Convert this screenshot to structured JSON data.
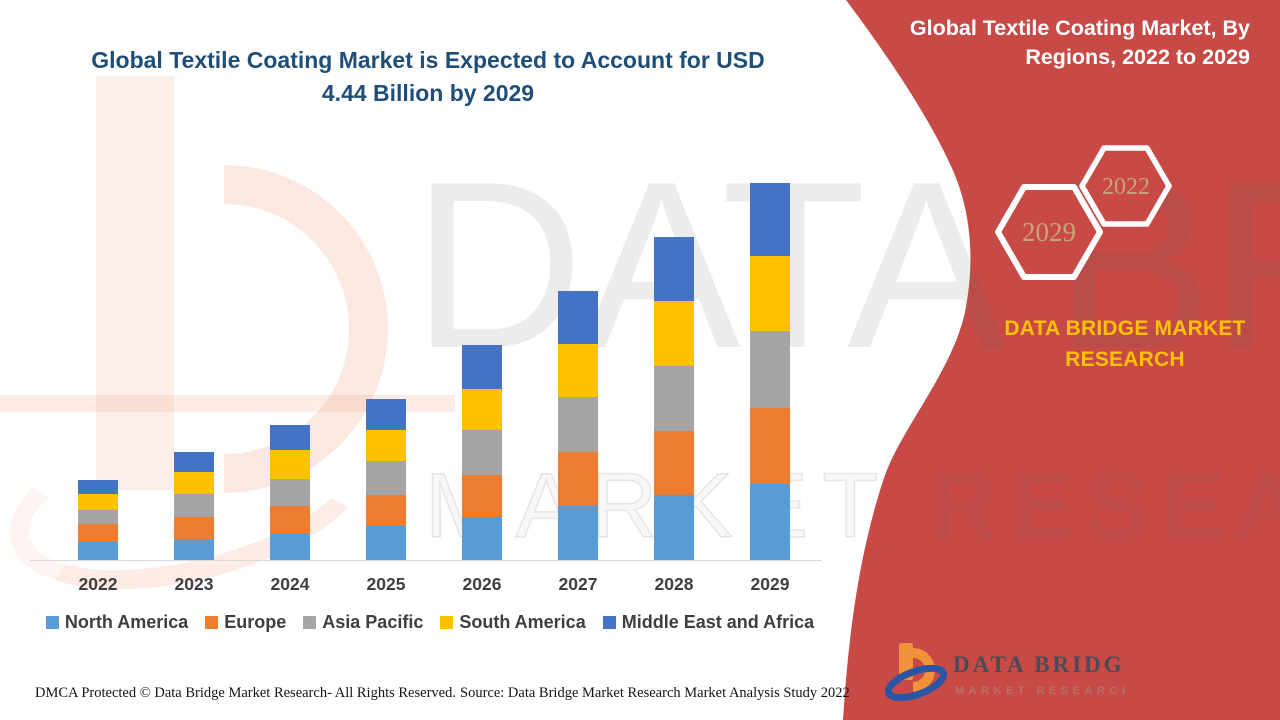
{
  "chart": {
    "title_line1": "Global Textile Coating Market is Expected to Account for USD",
    "title_line2": "4.44 Billion by 2029"
  },
  "chart_data": {
    "type": "bar",
    "stacked": true,
    "title": "Global Textile Coating Market is Expected to Account for USD 4.44 Billion by 2029",
    "unit": "USD Billion",
    "xlabel": "",
    "ylabel": "",
    "y_axis_visible": false,
    "grid": false,
    "legend_position": "bottom",
    "categories": [
      "2022",
      "2023",
      "2024",
      "2025",
      "2026",
      "2027",
      "2028",
      "2029"
    ],
    "series": [
      {
        "name": "North America",
        "color": "#5B9BD5",
        "values": [
          0.21,
          0.25,
          0.31,
          0.4,
          0.51,
          0.64,
          0.76,
          0.89
        ]
      },
      {
        "name": "Europe",
        "color": "#ED7D31",
        "values": [
          0.21,
          0.26,
          0.33,
          0.37,
          0.49,
          0.63,
          0.76,
          0.9
        ]
      },
      {
        "name": "Asia Pacific",
        "color": "#A5A5A5",
        "values": [
          0.17,
          0.27,
          0.31,
          0.39,
          0.53,
          0.65,
          0.76,
          0.9
        ]
      },
      {
        "name": "South America",
        "color": "#FFC000",
        "values": [
          0.19,
          0.25,
          0.34,
          0.37,
          0.48,
          0.62,
          0.77,
          0.89
        ]
      },
      {
        "name": "Middle East and Africa",
        "color": "#4472C4",
        "values": [
          0.16,
          0.24,
          0.3,
          0.37,
          0.52,
          0.62,
          0.75,
          0.86
        ]
      }
    ],
    "totals": [
      0.94,
      1.27,
      1.59,
      1.9,
      2.53,
      3.16,
      3.8,
      4.44
    ]
  },
  "side_panel": {
    "title_line1": "Global Textile Coating Market, By",
    "title_line2": "Regions, 2022 to 2029",
    "hexagon_large_label": "2029",
    "hexagon_small_label": "2022",
    "brand_line1": "DATA BRIDGE MARKET",
    "brand_line2": "RESEARCH",
    "panel_color": "#C84A46",
    "brand_text_color": "#FFC104",
    "hexagon_text_color": "#C9A47A"
  },
  "logo": {
    "name": "DATA BRIDGE",
    "subtitle": "MARKET RESEARCH"
  },
  "watermark": {
    "big_text": "DATA BRIDGE",
    "outline_text": "MARKET RESEARCH"
  },
  "footer": {
    "dmca": "DMCA Protected © Data Bridge Market Research- All Rights Reserved.",
    "source": "Source: Data Bridge Market Research Market Analysis Study 2022"
  }
}
